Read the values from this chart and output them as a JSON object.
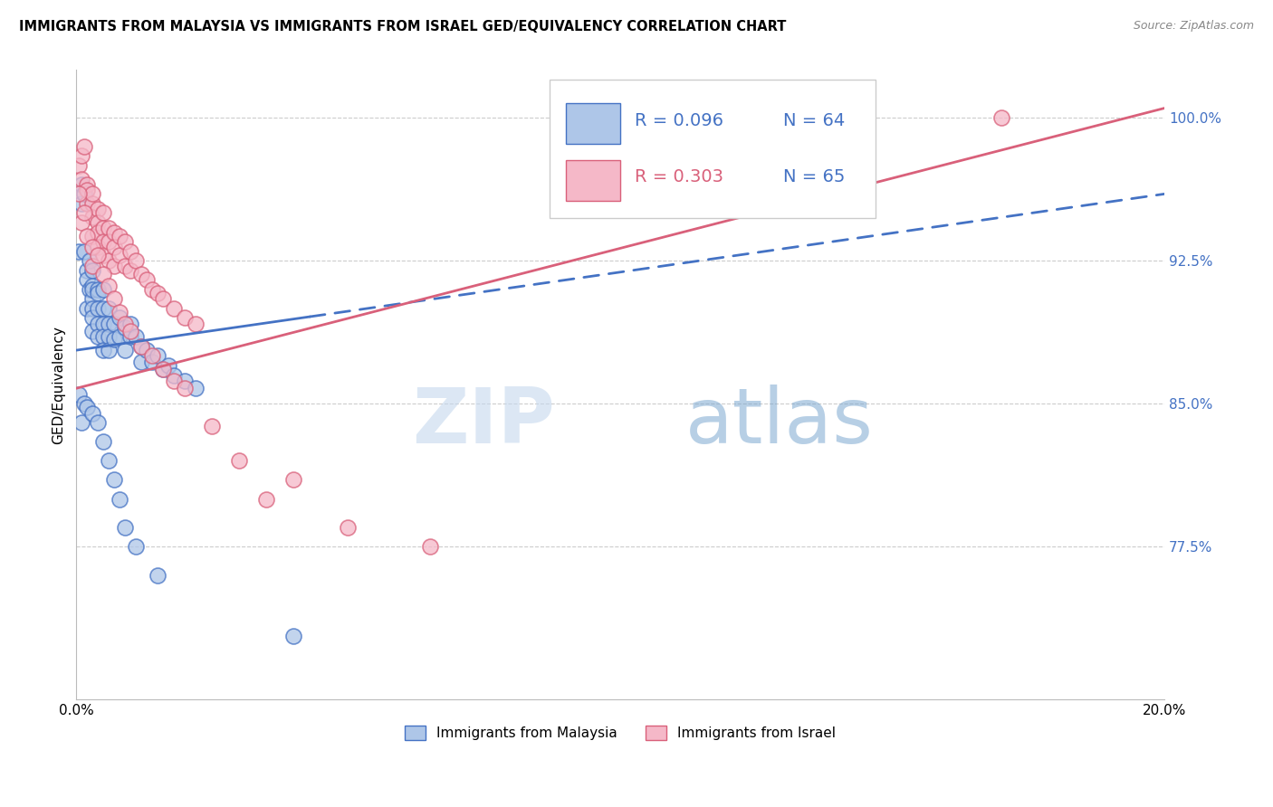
{
  "title": "IMMIGRANTS FROM MALAYSIA VS IMMIGRANTS FROM ISRAEL GED/EQUIVALENCY CORRELATION CHART",
  "source": "Source: ZipAtlas.com",
  "ylabel": "GED/Equivalency",
  "x_min": 0.0,
  "x_max": 0.2,
  "y_min": 0.695,
  "y_max": 1.025,
  "legend_r_malaysia": "R = 0.096",
  "legend_n_malaysia": "N = 64",
  "legend_r_israel": "R = 0.303",
  "legend_n_israel": "N = 65",
  "label_malaysia": "Immigrants from Malaysia",
  "label_israel": "Immigrants from Israel",
  "color_malaysia": "#aec6e8",
  "color_israel": "#f5b8c8",
  "color_trend_malaysia": "#4472c4",
  "color_trend_israel": "#d9607a",
  "color_text_blue": "#4472c4",
  "color_text_pink": "#d9607a",
  "malaysia_trend_x0": 0.0,
  "malaysia_trend_y0": 0.878,
  "malaysia_trend_x1": 0.2,
  "malaysia_trend_y1": 0.96,
  "malaysia_solid_xend": 0.043,
  "israel_trend_x0": 0.0,
  "israel_trend_y0": 0.858,
  "israel_trend_x1": 0.2,
  "israel_trend_y1": 1.005,
  "malaysia_x": [
    0.0005,
    0.001,
    0.001,
    0.0015,
    0.0015,
    0.002,
    0.002,
    0.002,
    0.0025,
    0.0025,
    0.003,
    0.003,
    0.003,
    0.003,
    0.003,
    0.003,
    0.003,
    0.004,
    0.004,
    0.004,
    0.004,
    0.004,
    0.005,
    0.005,
    0.005,
    0.005,
    0.005,
    0.006,
    0.006,
    0.006,
    0.006,
    0.007,
    0.007,
    0.008,
    0.008,
    0.009,
    0.009,
    0.01,
    0.01,
    0.011,
    0.012,
    0.012,
    0.013,
    0.014,
    0.015,
    0.016,
    0.017,
    0.018,
    0.02,
    0.022,
    0.0005,
    0.001,
    0.0015,
    0.002,
    0.003,
    0.004,
    0.005,
    0.006,
    0.007,
    0.008,
    0.009,
    0.011,
    0.015,
    0.04
  ],
  "malaysia_y": [
    0.93,
    0.965,
    0.955,
    0.93,
    0.96,
    0.92,
    0.915,
    0.9,
    0.925,
    0.91,
    0.92,
    0.912,
    0.905,
    0.9,
    0.895,
    0.91,
    0.888,
    0.91,
    0.908,
    0.9,
    0.892,
    0.885,
    0.91,
    0.9,
    0.892,
    0.885,
    0.878,
    0.9,
    0.892,
    0.885,
    0.878,
    0.892,
    0.884,
    0.895,
    0.885,
    0.89,
    0.878,
    0.885,
    0.892,
    0.885,
    0.88,
    0.872,
    0.878,
    0.872,
    0.875,
    0.868,
    0.87,
    0.865,
    0.862,
    0.858,
    0.855,
    0.84,
    0.85,
    0.848,
    0.845,
    0.84,
    0.83,
    0.82,
    0.81,
    0.8,
    0.785,
    0.775,
    0.76,
    0.728
  ],
  "israel_x": [
    0.0005,
    0.001,
    0.001,
    0.0015,
    0.002,
    0.002,
    0.002,
    0.003,
    0.003,
    0.003,
    0.003,
    0.004,
    0.004,
    0.004,
    0.004,
    0.005,
    0.005,
    0.005,
    0.005,
    0.006,
    0.006,
    0.006,
    0.007,
    0.007,
    0.007,
    0.008,
    0.008,
    0.009,
    0.009,
    0.01,
    0.01,
    0.011,
    0.012,
    0.013,
    0.014,
    0.015,
    0.016,
    0.018,
    0.02,
    0.022,
    0.0005,
    0.001,
    0.0015,
    0.002,
    0.003,
    0.003,
    0.004,
    0.005,
    0.006,
    0.007,
    0.008,
    0.009,
    0.01,
    0.012,
    0.014,
    0.016,
    0.018,
    0.02,
    0.025,
    0.03,
    0.035,
    0.04,
    0.05,
    0.065,
    0.17
  ],
  "israel_y": [
    0.975,
    0.98,
    0.968,
    0.985,
    0.965,
    0.955,
    0.962,
    0.955,
    0.948,
    0.96,
    0.938,
    0.952,
    0.945,
    0.94,
    0.932,
    0.95,
    0.942,
    0.935,
    0.928,
    0.942,
    0.935,
    0.925,
    0.94,
    0.932,
    0.922,
    0.938,
    0.928,
    0.935,
    0.922,
    0.93,
    0.92,
    0.925,
    0.918,
    0.915,
    0.91,
    0.908,
    0.905,
    0.9,
    0.895,
    0.892,
    0.96,
    0.945,
    0.95,
    0.938,
    0.932,
    0.922,
    0.928,
    0.918,
    0.912,
    0.905,
    0.898,
    0.892,
    0.888,
    0.88,
    0.875,
    0.868,
    0.862,
    0.858,
    0.838,
    0.82,
    0.8,
    0.81,
    0.785,
    0.775,
    1.0
  ]
}
